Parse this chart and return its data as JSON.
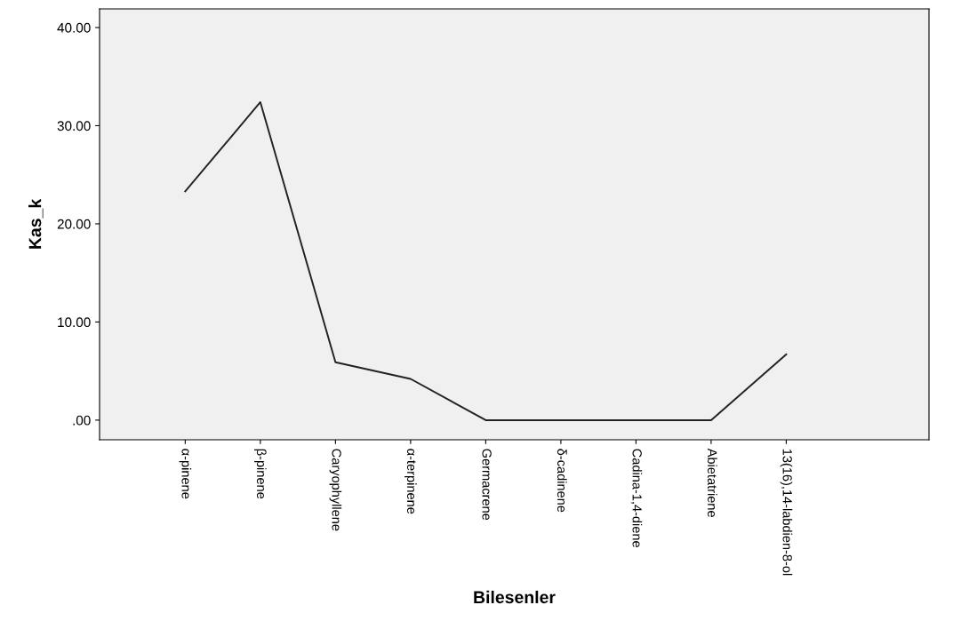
{
  "chart_data": {
    "type": "line",
    "xlabel": "Bilesenler",
    "ylabel": "Kas_k",
    "categories": [
      "α-pinene",
      "β-pinene",
      "Caryophyllene",
      "α-terpinene",
      "Germacrene",
      "δ-cadinene",
      "Cadina-1,4-diene",
      "Abietatriene",
      "13(16),14-labdien-8-ol"
    ],
    "series": [
      {
        "color": "#222222",
        "values": [
          23.3,
          32.4,
          5.9,
          4.2,
          0,
          0,
          0,
          0,
          6.7
        ]
      }
    ],
    "ylim": [
      -2,
      41.9
    ],
    "yticks": [
      {
        "value": 0,
        "label": ".00"
      },
      {
        "value": 10,
        "label": "10.00"
      },
      {
        "value": 20,
        "label": "20.00"
      },
      {
        "value": 30,
        "label": "30.00"
      },
      {
        "value": 40,
        "label": "40.00"
      }
    ],
    "grid": false,
    "marker": "none",
    "line_style": "solid"
  }
}
